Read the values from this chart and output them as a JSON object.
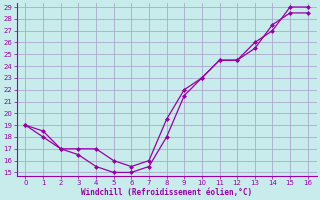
{
  "xlabel": "Windchill (Refroidissement éolien,°C)",
  "background_color": "#c8ecec",
  "grid_color": "#aaaacc",
  "line_color": "#9900aa",
  "line1_x": [
    0,
    1,
    2,
    3,
    4,
    5,
    6,
    7,
    8,
    9,
    10,
    11,
    12,
    13,
    14,
    15,
    16
  ],
  "line1_y": [
    19,
    18,
    17,
    16.5,
    15.5,
    15,
    15,
    15.5,
    18,
    21.5,
    23,
    24.5,
    24.5,
    26,
    27,
    29,
    29
  ],
  "line2_x": [
    0,
    1,
    2,
    3,
    4,
    5,
    6,
    7,
    8,
    9,
    10,
    11,
    12,
    13,
    14,
    15,
    16
  ],
  "line2_y": [
    19,
    18.5,
    17,
    17,
    17,
    16,
    15.5,
    16,
    19.5,
    22,
    23,
    24.5,
    24.5,
    25.5,
    27.5,
    28.5,
    28.5
  ],
  "xlim": [
    -0.5,
    16.5
  ],
  "ylim": [
    14.7,
    29.3
  ],
  "xticks": [
    0,
    1,
    2,
    3,
    4,
    5,
    6,
    7,
    8,
    9,
    10,
    11,
    12,
    13,
    14,
    15,
    16
  ],
  "yticks": [
    15,
    16,
    17,
    18,
    19,
    20,
    21,
    22,
    23,
    24,
    25,
    26,
    27,
    28,
    29
  ]
}
